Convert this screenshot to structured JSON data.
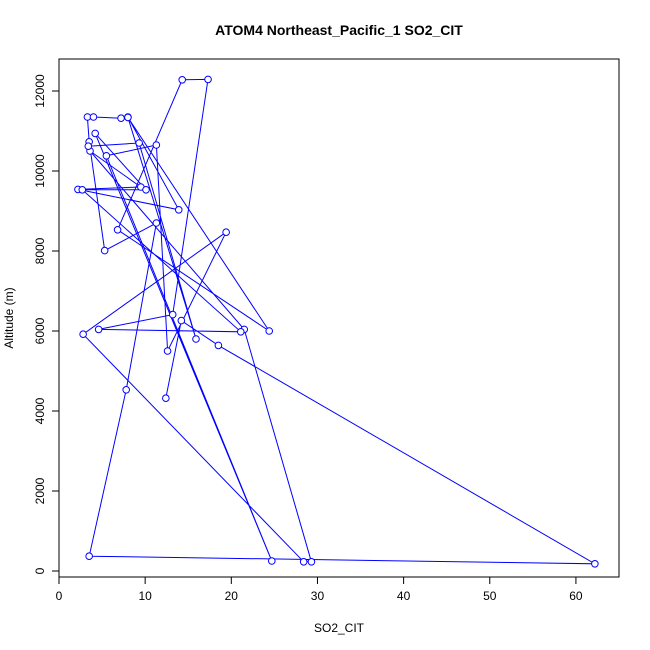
{
  "chart_data": {
    "type": "line",
    "title": "ATOM4 Northeast_Pacific_1 SO2_CIT",
    "xlabel": "SO2_CIT",
    "ylabel": "Altitude (m)",
    "xlim": [
      0,
      65
    ],
    "ylim": [
      -150,
      12800
    ],
    "xticks": [
      0,
      10,
      20,
      30,
      40,
      50,
      60
    ],
    "yticks": [
      0,
      2000,
      4000,
      6000,
      8000,
      10000,
      12000
    ],
    "grid": false,
    "legend": "none",
    "series": [
      {
        "color": "#0000ff",
        "marker": "open-circle",
        "x": [
          12.4,
          14.2,
          18.5,
          62.2,
          3.5,
          7.8,
          11.3,
          5.3,
          3.5,
          3.3,
          4.0,
          7.2,
          8.0,
          13.9,
          2.2,
          9.5,
          3.6,
          21.5,
          29.3,
          28.4,
          2.8,
          19.4,
          12.6,
          11.3,
          5.5,
          24.7,
          4.2,
          10.1,
          2.7,
          21.1,
          4.6,
          13.2,
          17.3,
          14.3,
          6.8,
          24.4,
          8.0,
          15.9,
          9.3,
          3.4
        ],
        "y": [
          4320,
          6260,
          5640,
          180,
          370,
          4530,
          8700,
          8010,
          10730,
          11350,
          11350,
          11320,
          11350,
          9030,
          9540,
          9600,
          10500,
          6040,
          230,
          230,
          5920,
          8470,
          5500,
          10650,
          10380,
          250,
          10940,
          9530,
          9530,
          5980,
          6040,
          6410,
          12290,
          12280,
          8530,
          6000,
          11340,
          5800,
          10700,
          10620
        ]
      }
    ]
  }
}
